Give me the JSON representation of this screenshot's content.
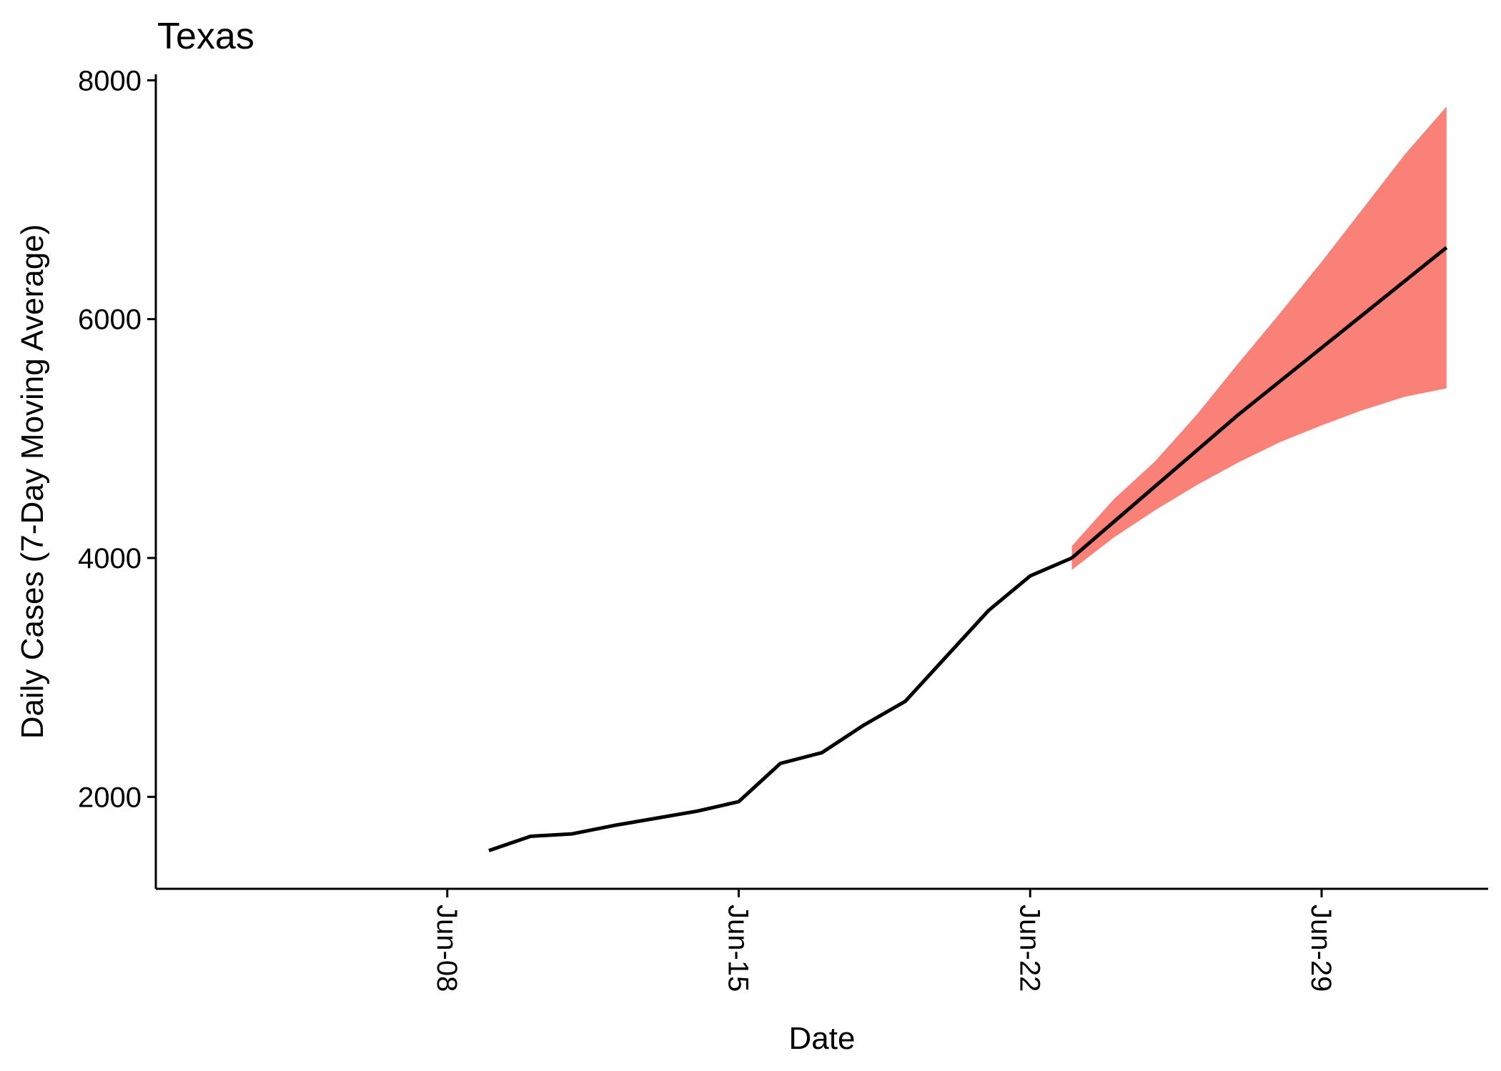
{
  "chart_data": {
    "type": "line",
    "title": "Texas",
    "xlabel": "Date",
    "ylabel": "Daily Cases (7-Day Moving Average)",
    "x_axis": {
      "type": "date",
      "range": [
        "2020-06-01",
        "2020-07-03"
      ],
      "ticks": [
        {
          "date": "2020-06-08",
          "label": "Jun-08"
        },
        {
          "date": "2020-06-15",
          "label": "Jun-15"
        },
        {
          "date": "2020-06-22",
          "label": "Jun-22"
        },
        {
          "date": "2020-06-29",
          "label": "Jun-29"
        }
      ],
      "tick_label_rotation": "vertical"
    },
    "y_axis": {
      "range": [
        1230,
        8050
      ],
      "ticks": [
        {
          "value": 2000,
          "label": "2000"
        },
        {
          "value": 4000,
          "label": "4000"
        },
        {
          "value": 6000,
          "label": "6000"
        },
        {
          "value": 8000,
          "label": "8000"
        }
      ]
    },
    "grid": false,
    "colors": {
      "line": "#000000",
      "band": "#F8766D",
      "axis": "#000000"
    },
    "series": [
      {
        "kind": "observed-line",
        "x": [
          "2020-06-09",
          "2020-06-10",
          "2020-06-11",
          "2020-06-12",
          "2020-06-13",
          "2020-06-14",
          "2020-06-15",
          "2020-06-16",
          "2020-06-17",
          "2020-06-18",
          "2020-06-19",
          "2020-06-20",
          "2020-06-21",
          "2020-06-22",
          "2020-06-23"
        ],
        "y": [
          1550,
          1670,
          1690,
          1760,
          1820,
          1880,
          1960,
          2280,
          2370,
          2600,
          2800,
          3180,
          3560,
          3850,
          4000
        ]
      },
      {
        "kind": "forecast-line",
        "x": [
          "2020-06-23",
          "2020-06-24",
          "2020-06-25",
          "2020-06-26",
          "2020-06-27",
          "2020-06-28",
          "2020-06-29",
          "2020-06-30",
          "2020-07-01",
          "2020-07-02"
        ],
        "y": [
          4000,
          4300,
          4600,
          4900,
          5200,
          5480,
          5760,
          6040,
          6320,
          6600
        ]
      },
      {
        "kind": "forecast-interval",
        "x": [
          "2020-06-23",
          "2020-06-24",
          "2020-06-25",
          "2020-06-26",
          "2020-06-27",
          "2020-06-28",
          "2020-06-29",
          "2020-06-30",
          "2020-07-01",
          "2020-07-02"
        ],
        "lower": [
          3900,
          4170,
          4400,
          4610,
          4800,
          4970,
          5110,
          5240,
          5350,
          5420
        ],
        "upper": [
          4100,
          4490,
          4810,
          5200,
          5630,
          6050,
          6480,
          6930,
          7380,
          7780
        ]
      }
    ]
  }
}
